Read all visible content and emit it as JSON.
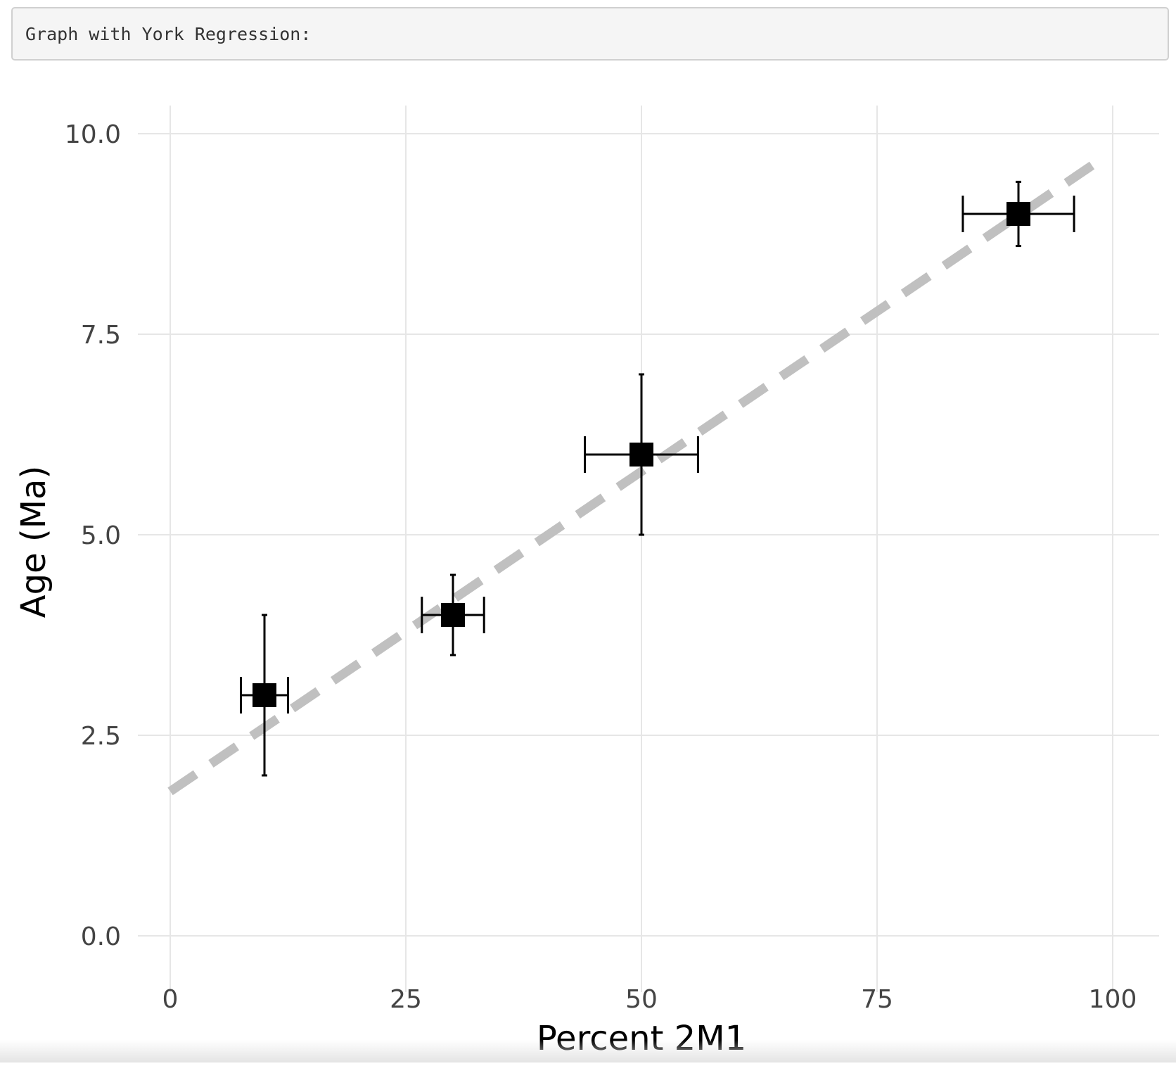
{
  "header": {
    "text": "Graph with York Regression:"
  },
  "chart_data": {
    "type": "scatter",
    "title": "",
    "xlabel": "Percent 2M1",
    "ylabel": "Age (Ma)",
    "xlim": [
      -5,
      101.5
    ],
    "ylim": [
      -0.5,
      10.25
    ],
    "xticks": [
      0,
      25,
      50,
      75,
      100
    ],
    "yticks": [
      0,
      2.5,
      5,
      7.5,
      10
    ],
    "xtick_labels": [
      "0",
      "25",
      "50",
      "75",
      "100"
    ],
    "ytick_labels": [
      "0.0",
      "2.5",
      "5.0",
      "7.5",
      "10.0"
    ],
    "grid": true,
    "legend": "none",
    "points": [
      {
        "x": 10,
        "y": 3,
        "x_err": 2.5,
        "y_err": 1
      },
      {
        "x": 30,
        "y": 4,
        "x_err": 3.3,
        "y_err": 0.5
      },
      {
        "x": 50,
        "y": 6,
        "x_err": 6,
        "y_err": 1
      },
      {
        "x": 90,
        "y": 9,
        "x_err": 5.9,
        "y_err": 0.4
      }
    ],
    "regression_line": {
      "x": [
        0,
        99
      ],
      "y": [
        1.8,
        9.7
      ],
      "style": "dashed",
      "color": "#c0c0c0"
    },
    "marker_color": "#000000",
    "marker_shape": "square"
  }
}
